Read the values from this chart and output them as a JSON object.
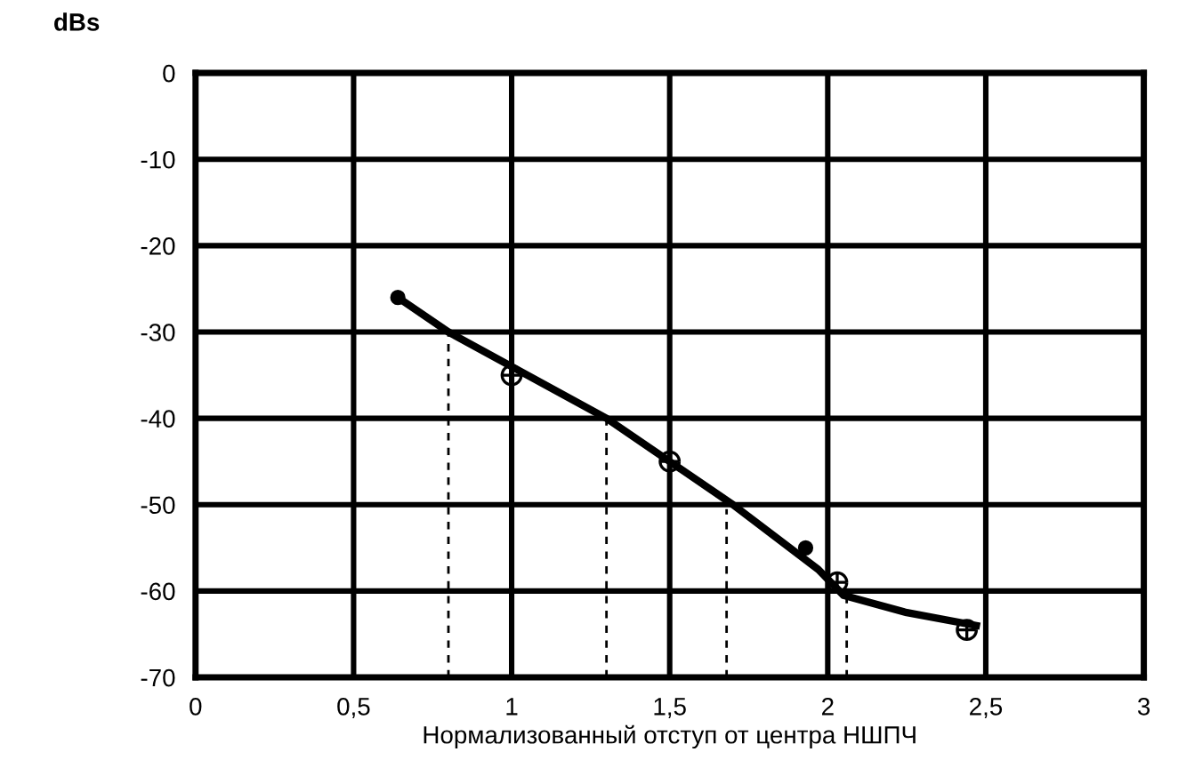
{
  "chart_data": {
    "type": "line",
    "ylabel": "dBs",
    "xlabel": "Нормализованный отступ от центра НШПЧ",
    "xlim": [
      0,
      3
    ],
    "ylim": [
      -70,
      0
    ],
    "xticks": [
      0,
      {
        "value": 0.5,
        "label": "0,5"
      },
      1,
      {
        "value": 1.5,
        "label": "1,5"
      },
      2,
      {
        "value": 2.5,
        "label": "2,5"
      },
      3
    ],
    "yticks": [
      0,
      -10,
      -20,
      -30,
      -40,
      -50,
      -60,
      -70
    ],
    "grid": true,
    "legend": false,
    "series": [
      {
        "color": "#000000",
        "marker": "none",
        "line_style": "solid",
        "x": [
          0.64,
          0.8,
          1.3,
          1.7,
          1.97,
          2.05,
          2.25,
          2.47
        ],
        "values": [
          -26,
          -30,
          -40,
          -50,
          -57.5,
          -60.5,
          -62.5,
          -64
        ]
      },
      {
        "type": "scatter",
        "color": "#000000",
        "marker": "circle",
        "x": [
          0.64,
          1.93
        ],
        "values": [
          -26,
          -55
        ]
      },
      {
        "type": "scatter",
        "color": "#000000",
        "marker": "cross",
        "x": [
          1.0,
          1.5,
          2.03,
          2.44
        ],
        "values": [
          -35,
          -45,
          -59,
          -64.5
        ]
      },
      {
        "type": "line",
        "color": "#000000",
        "marker": "none",
        "line_style": "dashed",
        "x": [
          0.8,
          0.8
        ],
        "values": [
          -70,
          -30
        ]
      },
      {
        "type": "line",
        "color": "#000000",
        "marker": "none",
        "line_style": "dashed",
        "x": [
          1.3,
          1.3
        ],
        "values": [
          -70,
          -40
        ]
      },
      {
        "type": "line",
        "color": "#000000",
        "marker": "none",
        "line_style": "dashed",
        "x": [
          1.68,
          1.68
        ],
        "values": [
          -70,
          -50.5
        ]
      },
      {
        "type": "line",
        "color": "#000000",
        "marker": "none",
        "line_style": "dashed",
        "x": [
          2.06,
          2.06
        ],
        "values": [
          -70,
          -60.7
        ]
      }
    ]
  }
}
